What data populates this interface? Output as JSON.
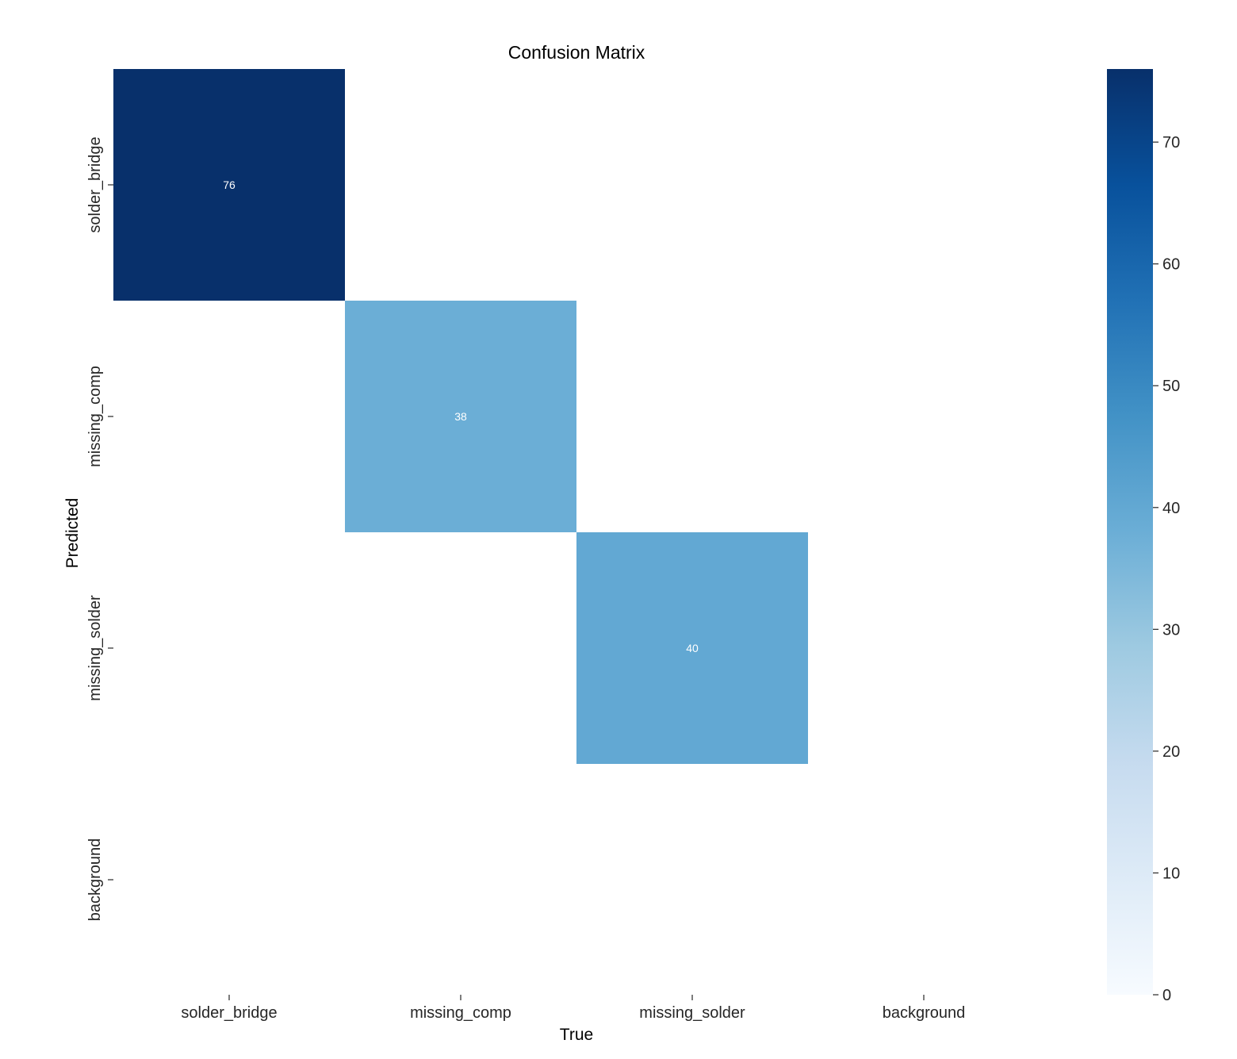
{
  "chart_data": {
    "type": "heatmap",
    "title": "Confusion Matrix",
    "xlabel": "True",
    "ylabel": "Predicted",
    "x_categories": [
      "solder_bridge",
      "missing_comp",
      "missing_solder",
      "background"
    ],
    "y_categories": [
      "solder_bridge",
      "missing_comp",
      "missing_solder",
      "background"
    ],
    "values": [
      [
        76,
        0,
        0,
        0
      ],
      [
        0,
        38,
        0,
        0
      ],
      [
        0,
        0,
        40,
        0
      ],
      [
        0,
        0,
        0,
        0
      ]
    ],
    "annotate_nonzero_only": true,
    "colormap": "Blues",
    "colorbar": {
      "vmin": 0,
      "vmax": 76,
      "ticks": [
        0,
        10,
        20,
        30,
        40,
        50,
        60,
        70
      ]
    }
  }
}
